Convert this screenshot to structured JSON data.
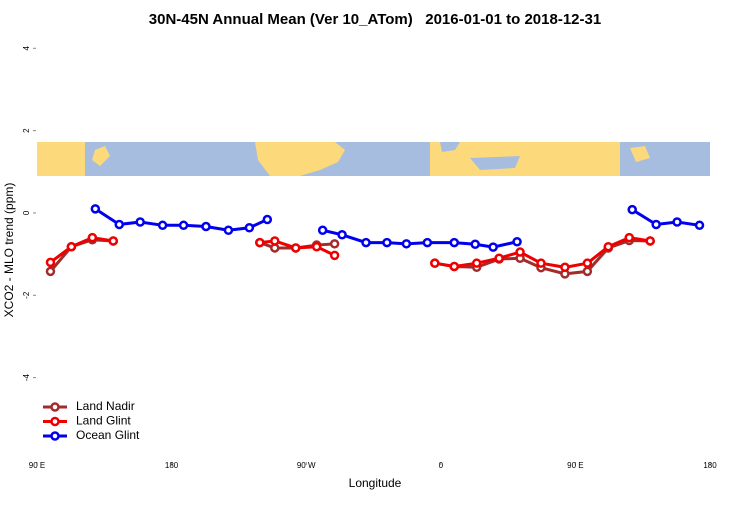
{
  "chart_data": {
    "type": "line",
    "title": "30N-45N Annual Mean (Ver 10_ATom)   2016-01-01 to 2018-12-31",
    "x_label": "Longitude",
    "y_label": "XCO2 - MLO trend (ppm)",
    "xlim": [
      90,
      540
    ],
    "ylim": [
      -6.05,
      4.25
    ],
    "xticks": [
      {
        "value": 90,
        "label": "90 E"
      },
      180,
      {
        "value": 270,
        "label": "90 W"
      },
      {
        "value": 360,
        "label": "0"
      },
      {
        "value": 450,
        "label": "90 E"
      },
      {
        "value": 540,
        "label": "180"
      }
    ],
    "yticks": [
      -4,
      -2,
      0,
      2,
      4
    ],
    "legend": "bottom-left",
    "series": [
      {
        "name": "Land Nadir",
        "color": "#a52a2a",
        "x": [
          99,
          113,
          127,
          141,
          null,
          239,
          249,
          263,
          277,
          289,
          null,
          356,
          369,
          384,
          399,
          413,
          427,
          443,
          458,
          472,
          486,
          500
        ],
        "values": [
          -1.42,
          -0.82,
          -0.65,
          -0.68,
          null,
          -0.72,
          -0.85,
          -0.85,
          -0.78,
          -0.75,
          null,
          -1.22,
          -1.3,
          -1.32,
          -1.12,
          -1.1,
          -1.33,
          -1.48,
          -1.42,
          -0.85,
          -0.67,
          -0.68
        ]
      },
      {
        "name": "Land Glint",
        "color": "#ee0000",
        "x": [
          99,
          113,
          127,
          141,
          null,
          239,
          249,
          263,
          277,
          289,
          null,
          356,
          369,
          384,
          399,
          413,
          427,
          443,
          458,
          472,
          486,
          500
        ],
        "values": [
          -1.2,
          -0.82,
          -0.6,
          -0.68,
          null,
          -0.72,
          -0.68,
          -0.85,
          -0.82,
          -1.03,
          null,
          -1.22,
          -1.3,
          -1.22,
          -1.1,
          -0.95,
          -1.22,
          -1.32,
          -1.22,
          -0.82,
          -0.6,
          -0.68
        ]
      },
      {
        "name": "Ocean Glint",
        "color": "#0000ee",
        "x": [
          129,
          145,
          159,
          174,
          188,
          203,
          218,
          232,
          244,
          null,
          281,
          294,
          310,
          324,
          337,
          351,
          369,
          383,
          395,
          411,
          null,
          488,
          504,
          518,
          533
        ],
        "values": [
          0.1,
          -0.28,
          -0.22,
          -0.3,
          -0.3,
          -0.33,
          -0.42,
          -0.36,
          -0.16,
          null,
          -0.42,
          -0.53,
          -0.72,
          -0.72,
          -0.75,
          -0.72,
          -0.72,
          -0.76,
          -0.83,
          -0.7,
          null,
          0.08,
          -0.28,
          -0.22,
          -0.3
        ]
      }
    ]
  }
}
